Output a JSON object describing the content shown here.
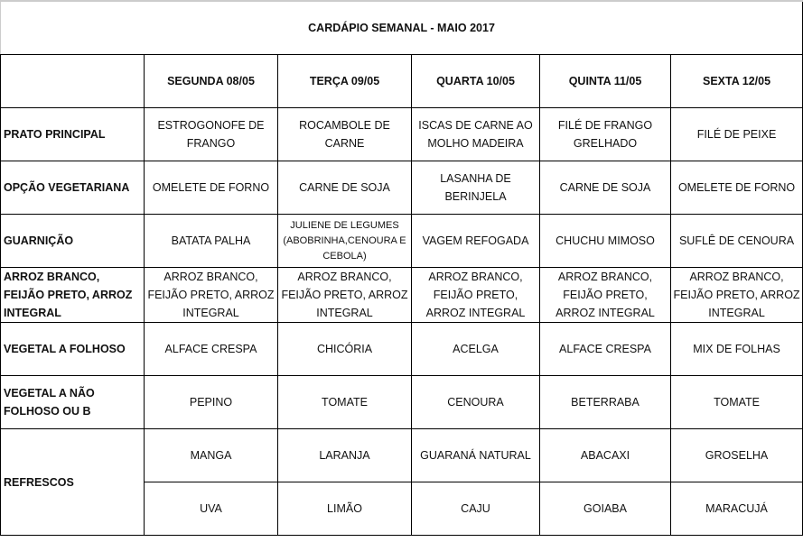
{
  "title": "CARDÁPIO SEMANAL - MAIO 2017",
  "days": [
    "SEGUNDA  08/05",
    "TERÇA  09/05",
    "QUARTA 10/05",
    "QUINTA 11/05",
    "SEXTA 12/05"
  ],
  "rows": [
    {
      "label": "PRATO PRINCIPAL",
      "cells": [
        "ESTROGONOFE DE FRANGO",
        "ROCAMBOLE DE CARNE",
        "ISCAS DE CARNE AO MOLHO MADEIRA",
        "FILÉ DE FRANGO GRELHADO",
        "FILÉ DE PEIXE"
      ]
    },
    {
      "label": "OPÇÃO VEGETARIANA",
      "cells": [
        "OMELETE DE FORNO",
        "CARNE DE SOJA",
        "LASANHA DE BERINJELA",
        "CARNE DE SOJA",
        "OMELETE DE FORNO"
      ]
    },
    {
      "label": "GUARNIÇÃO",
      "cells": [
        "BATATA PALHA",
        "JULIENE DE LEGUMES (ABOBRINHA,CENOURA  E CEBOLA)",
        "VAGEM  REFOGADA",
        "CHUCHU MIMOSO",
        "SUFLÊ DE CENOURA"
      ]
    },
    {
      "label": "ARROZ BRANCO, FEIJÃO PRETO, ARROZ INTEGRAL",
      "cells": [
        "ARROZ BRANCO, FEIJÃO PRETO, ARROZ INTEGRAL",
        "ARROZ BRANCO, FEIJÃO PRETO, ARROZ INTEGRAL",
        "ARROZ BRANCO, FEIJÃO PRETO, ARROZ INTEGRAL",
        "ARROZ BRANCO, FEIJÃO PRETO, ARROZ INTEGRAL",
        "ARROZ BRANCO, FEIJÃO PRETO, ARROZ INTEGRAL"
      ]
    },
    {
      "label": "VEGETAL A FOLHOSO",
      "cells": [
        "ALFACE CRESPA",
        "CHICÓRIA",
        "ACELGA",
        "ALFACE CRESPA",
        "MIX DE FOLHAS"
      ]
    },
    {
      "label": "VEGETAL A NÃO FOLHOSO OU B",
      "cells": [
        "PEPINO",
        "TOMATE",
        "CENOURA",
        "BETERRABA",
        "TOMATE"
      ]
    }
  ],
  "refrescos": {
    "label": "REFRESCOS",
    "row1": [
      "MANGA",
      "LARANJA",
      "GUARANÁ NATURAL",
      "ABACAXI",
      "GROSELHA"
    ],
    "row2": [
      "UVA",
      "LIMÃO",
      "CAJU",
      "GOIABA",
      "MARACUJÁ"
    ]
  }
}
